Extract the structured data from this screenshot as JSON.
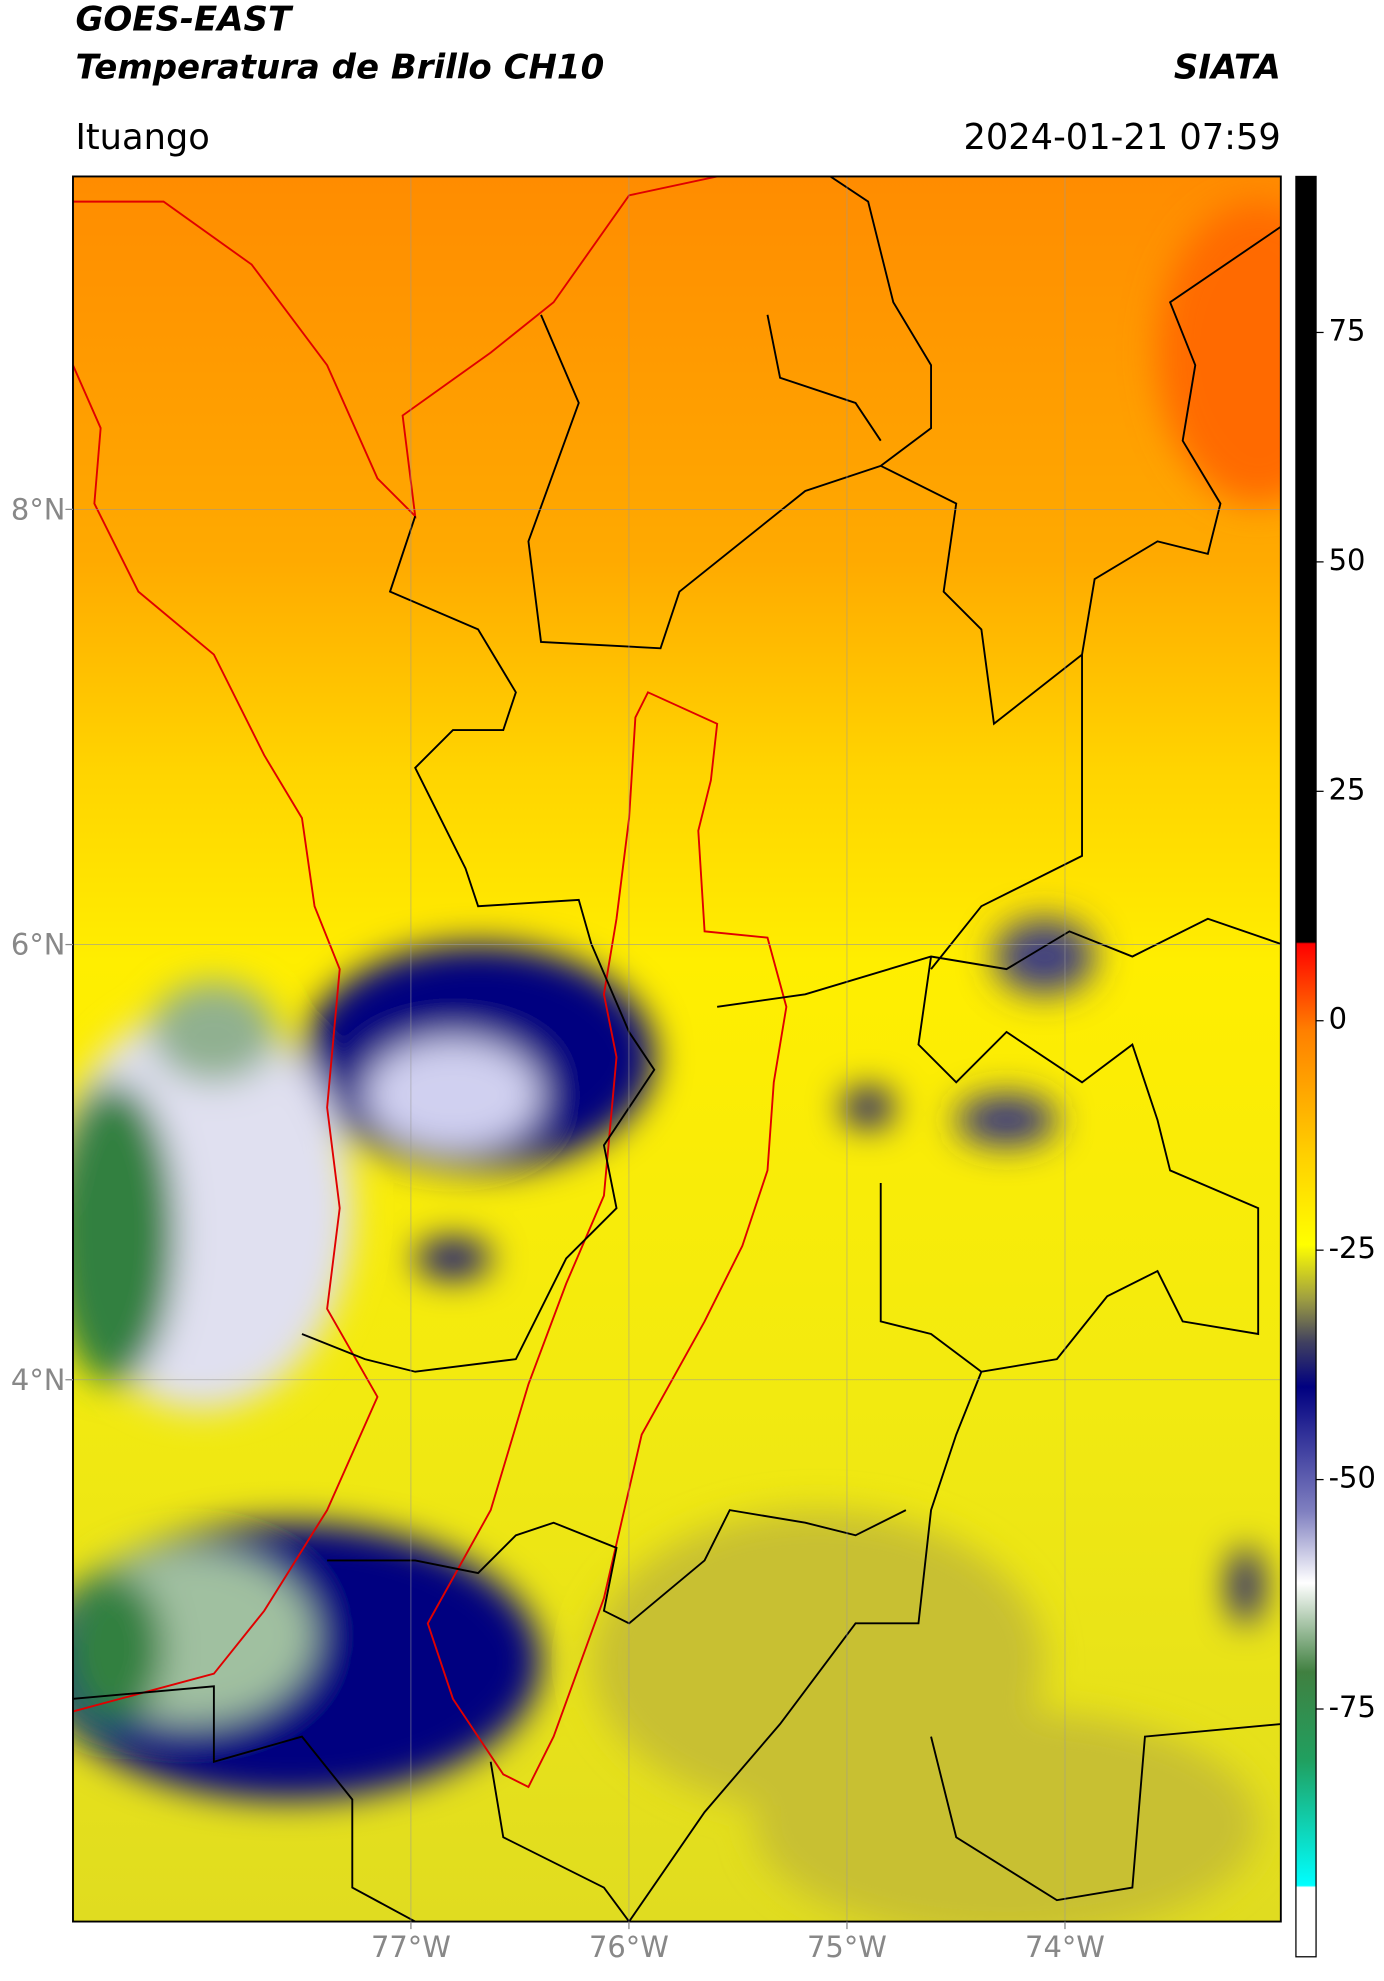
{
  "map": {
    "title": "GOES-EAST",
    "subtitle": "Temperatura de Brillo CH10",
    "source": "SIATA",
    "region": "Ituango",
    "datetime": "2024-01-21 07:59",
    "xlim": [
      -78.55,
      -73.01
    ],
    "ylim": [
      1.51,
      9.53
    ],
    "xticks": [
      {
        "value": -77,
        "label": "77°W"
      },
      {
        "value": -76,
        "label": "76°W"
      },
      {
        "value": -75,
        "label": "75°W"
      },
      {
        "value": -74,
        "label": "74°W"
      }
    ],
    "yticks": [
      {
        "value": 4,
        "label": "4°N"
      },
      {
        "value": 6,
        "label": "6°N"
      },
      {
        "value": 8,
        "label": "8°N"
      }
    ],
    "grid": true
  },
  "colorbar": {
    "lim": [
      -102,
      92
    ],
    "ticks": [
      -75,
      -50,
      -25,
      0,
      25,
      50,
      75
    ]
  }
}
